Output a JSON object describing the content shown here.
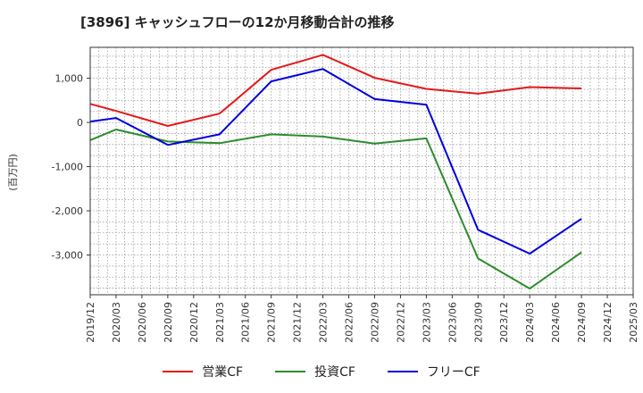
{
  "chart_data": {
    "type": "line",
    "title": "[3896]  キャッシュフローの12か月移動合計の推移",
    "ylabel": "(百万円)",
    "x_ticks": [
      "2019/12",
      "2020/03",
      "2020/06",
      "2020/09",
      "2020/12",
      "2021/03",
      "2021/06",
      "2021/09",
      "2021/12",
      "2022/03",
      "2022/06",
      "2022/09",
      "2022/12",
      "2023/03",
      "2023/06",
      "2023/09",
      "2023/12",
      "2024/03",
      "2024/06",
      "2024/09",
      "2024/12",
      "2025/03"
    ],
    "y_ticks": [
      1000,
      0,
      -1000,
      -2000,
      -3000
    ],
    "y_tick_labels": [
      "1,000",
      "0",
      "-1,000",
      "-2,000",
      "-3,000"
    ],
    "ylim": [
      -3900,
      1700
    ],
    "grid": true,
    "legend_position": "bottom",
    "series": [
      {
        "name": "営業CF",
        "color": "#e31a1c",
        "points": [
          [
            "2019/12",
            420
          ],
          [
            "2020/03",
            260
          ],
          [
            "2020/09",
            -80
          ],
          [
            "2021/03",
            200
          ],
          [
            "2021/09",
            1190
          ],
          [
            "2022/03",
            1530
          ],
          [
            "2022/09",
            1010
          ],
          [
            "2023/03",
            760
          ],
          [
            "2023/09",
            650
          ],
          [
            "2024/03",
            800
          ],
          [
            "2024/09",
            770
          ]
        ]
      },
      {
        "name": "投資CF",
        "color": "#2e8b2e",
        "points": [
          [
            "2019/12",
            -400
          ],
          [
            "2020/03",
            -160
          ],
          [
            "2020/09",
            -430
          ],
          [
            "2021/03",
            -470
          ],
          [
            "2021/09",
            -270
          ],
          [
            "2022/03",
            -320
          ],
          [
            "2022/09",
            -480
          ],
          [
            "2023/03",
            -360
          ],
          [
            "2023/09",
            -3080
          ],
          [
            "2024/03",
            -3760
          ],
          [
            "2024/09",
            -2940
          ]
        ]
      },
      {
        "name": "フリーCF",
        "color": "#0000dd",
        "points": [
          [
            "2019/12",
            20
          ],
          [
            "2020/03",
            100
          ],
          [
            "2020/09",
            -510
          ],
          [
            "2021/03",
            -270
          ],
          [
            "2021/09",
            930
          ],
          [
            "2022/03",
            1210
          ],
          [
            "2022/09",
            530
          ],
          [
            "2023/03",
            400
          ],
          [
            "2023/09",
            -2430
          ],
          [
            "2024/03",
            -2970
          ],
          [
            "2024/09",
            -2180
          ]
        ]
      }
    ]
  }
}
